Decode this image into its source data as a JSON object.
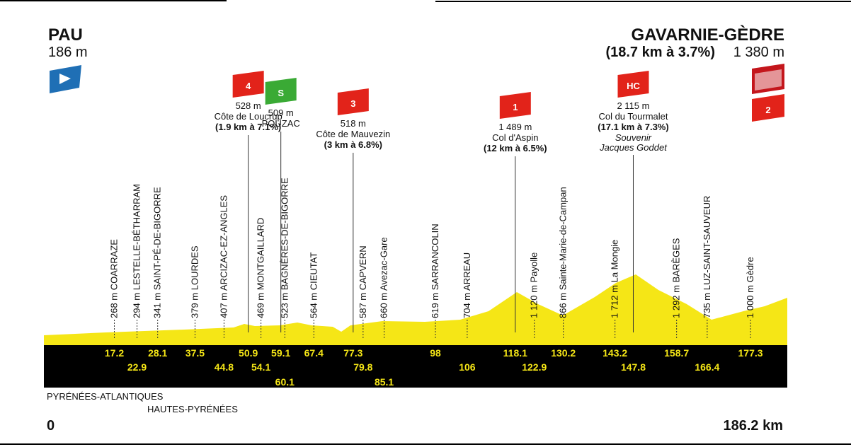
{
  "start": {
    "name": "PAU",
    "altitude": "186 m",
    "km": 0
  },
  "finish": {
    "name": "GAVARNIE-GÈDRE",
    "climb": "(18.7 km à 3.7%)",
    "altitude": "1 380 m",
    "category": "2",
    "km": 186.2,
    "km_label": "186.2 km"
  },
  "climbs": [
    {
      "category": "4",
      "altitude": "528 m",
      "name": "Côte de Loucrup",
      "detail": "(1.9 km à 7.1%)",
      "km": 50.9,
      "color": "#e2231a"
    },
    {
      "category": "S",
      "altitude": "509 m",
      "name": "POUZAC",
      "km": 59.1,
      "color": "#3aaa35"
    },
    {
      "category": "3",
      "altitude": "518 m",
      "name": "Côte de Mauvezin",
      "detail": "(3 km à 6.8%)",
      "km": 77.3,
      "color": "#e2231a"
    },
    {
      "category": "1",
      "altitude": "1 489 m",
      "name": "Col d'Aspin",
      "detail": "(12 km à 6.5%)",
      "km": 118.1,
      "color": "#e2231a"
    },
    {
      "category": "HC",
      "altitude": "2 115 m",
      "name": "Col du Tourmalet",
      "detail": "(17.1 km à 7.3%)",
      "note": [
        "Souvenir",
        "Jacques Goddet"
      ],
      "km": 147.8,
      "color": "#e2231a"
    }
  ],
  "towns": [
    {
      "label": "268 m COARRAZE",
      "km": 17.2
    },
    {
      "label": "294 m LESTELLE-BÉTHARRAM",
      "km": 22.9
    },
    {
      "label": "341 m SAINT-PÉ-DE-BIGORRE",
      "km": 28.1
    },
    {
      "label": "379 m LOURDES",
      "km": 37.5
    },
    {
      "label": "407 m ARCIZAC-EZ-ANGLES",
      "km": 44.8
    },
    {
      "label": "469 m MONTGAILLARD",
      "km": 54.1
    },
    {
      "label": "523 m BAGNÈRES-DE-BIGORRE",
      "km": 60.1
    },
    {
      "label": "564 m CIEUTAT",
      "km": 67.4
    },
    {
      "label": "587 m CAPVERN",
      "km": 79.8
    },
    {
      "label": "660 m Avezac-Gare",
      "km": 85.1
    },
    {
      "label": "619 m SARRANCOLIN",
      "km": 98
    },
    {
      "label": "704 m ARREAU",
      "km": 106
    },
    {
      "label": "1 120 m Payolle",
      "km": 122.9
    },
    {
      "label": "866 m Sainte-Marie-de-Campan",
      "km": 130.2
    },
    {
      "label": "1 712 m La Mongie",
      "km": 143.2
    },
    {
      "label": "1 292 m BARÈGES",
      "km": 158.7
    },
    {
      "label": "735 m LUZ-SAINT-SAUVEUR",
      "km": 166.4
    },
    {
      "label": "1 000 m Gèdre",
      "km": 177.3
    }
  ],
  "departments": [
    "PYRÉNÉES-ATLANTIQUES",
    "HAUTES-PYRÉNÉES"
  ]
}
